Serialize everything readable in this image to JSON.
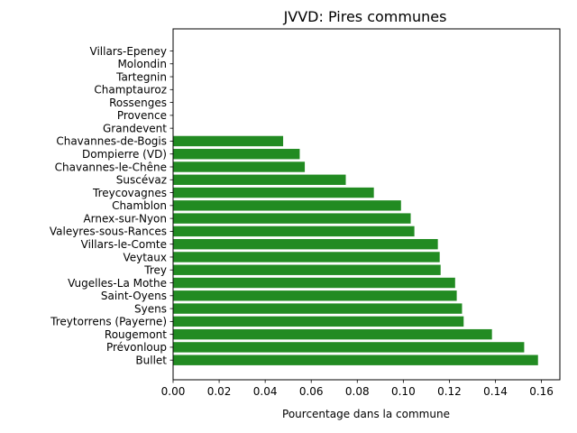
{
  "chart_data": {
    "type": "bar",
    "orientation": "horizontal",
    "title": "JVVD: Pires communes",
    "xlabel": "Pourcentage dans la commune",
    "ylabel": "",
    "xlim": [
      0,
      0.168
    ],
    "xticks": [
      "0.00",
      "0.02",
      "0.04",
      "0.06",
      "0.08",
      "0.10",
      "0.12",
      "0.14",
      "0.16"
    ],
    "bar_color": "#228b22",
    "grid": false,
    "categories": [
      "Bullet",
      "Prévonloup",
      "Rougemont",
      "Treytorrens (Payerne)",
      "Syens",
      "Saint-Oyens",
      "Vugelles-La Mothe",
      "Trey",
      "Veytaux",
      "Villars-le-Comte",
      "Valeyres-sous-Rances",
      "Arnex-sur-Nyon",
      "Chamblon",
      "Treycovagnes",
      "Suscévaz",
      "Chavannes-le-Chêne",
      "Dompierre (VD)",
      "Chavannes-de-Bogis",
      "Grandevent",
      "Provence",
      "Rossenges",
      "Champtauroz",
      "Tartegnin",
      "Molondin",
      "Villars-Epeney"
    ],
    "values": [
      0.1585,
      0.1525,
      0.1385,
      0.1262,
      0.1255,
      0.1232,
      0.1225,
      0.1162,
      0.1158,
      0.115,
      0.1048,
      0.1032,
      0.099,
      0.0872,
      0.075,
      0.0572,
      0.055,
      0.0478,
      0,
      0,
      0,
      0,
      0,
      0,
      0
    ]
  }
}
